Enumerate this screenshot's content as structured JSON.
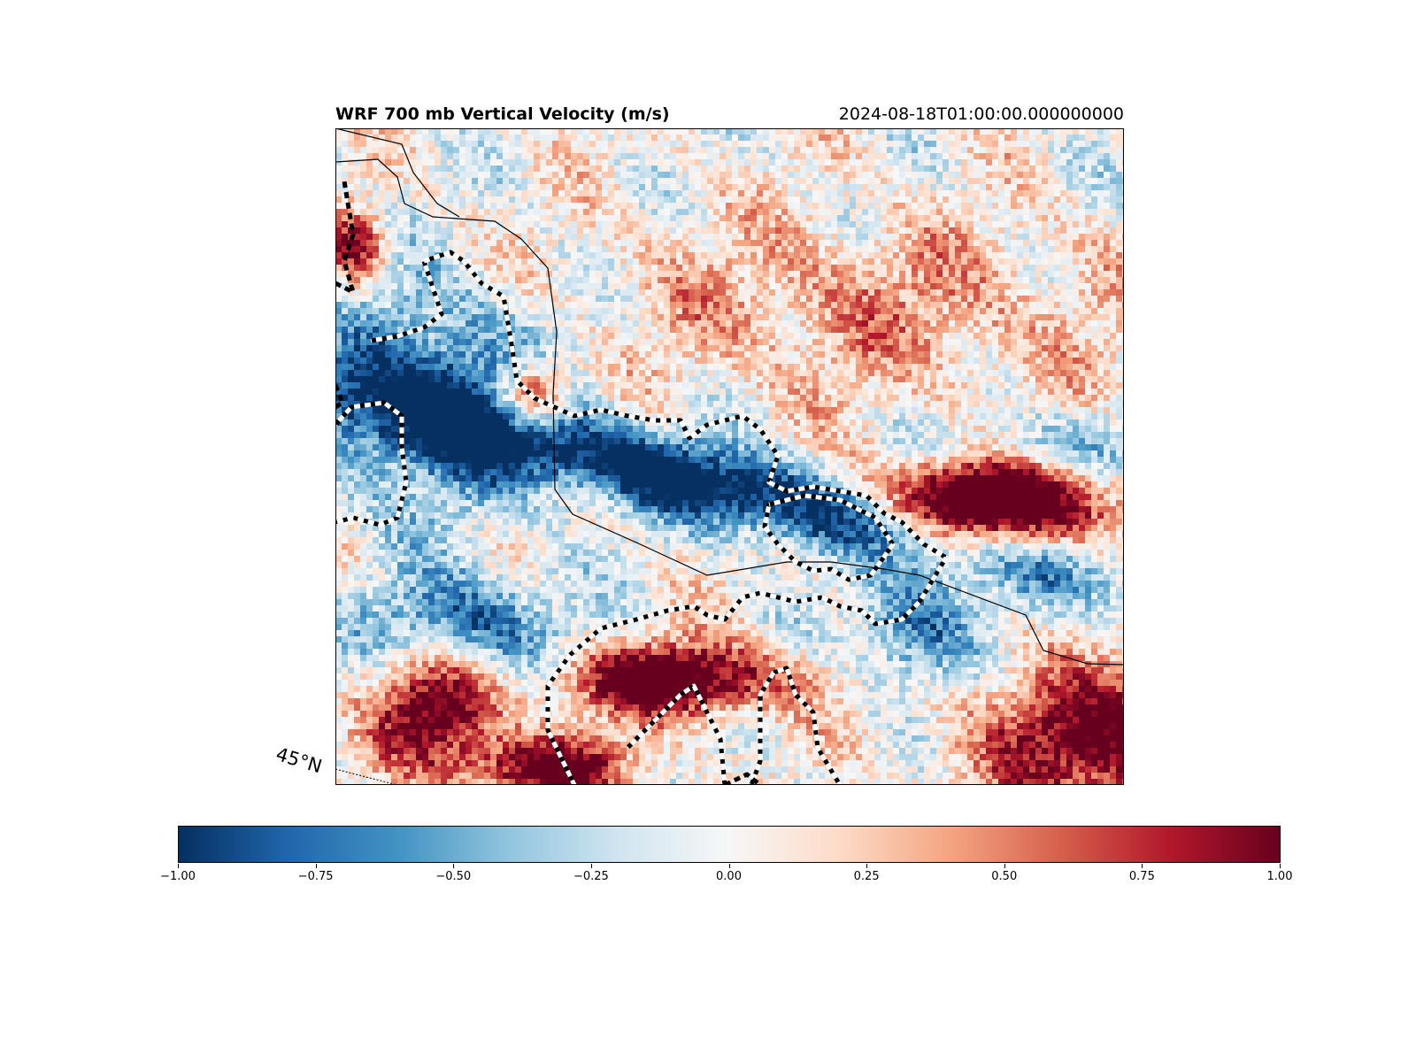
{
  "title": "WRF 700 mb Vertical Velocity (m/s)",
  "valid_time": "2024-08-18T01:00:00.000000000",
  "lat_label": "45°N",
  "colormap": {
    "name": "RdBu_r",
    "vmin": -1.0,
    "vmax": 1.0,
    "stops": [
      "#053061",
      "#2166ac",
      "#4393c3",
      "#92c5de",
      "#d1e5f0",
      "#f7f7f7",
      "#fddbc7",
      "#f4a582",
      "#d6604d",
      "#b2182b",
      "#67001f"
    ]
  },
  "colorbar_ticks": [
    "−1.00",
    "−0.75",
    "−0.50",
    "−0.25",
    "0.00",
    "0.25",
    "0.50",
    "0.75",
    "1.00"
  ],
  "colorbar_tick_values": [
    -1.0,
    -0.75,
    -0.5,
    -0.25,
    0.0,
    0.25,
    0.5,
    0.75,
    1.0
  ]
}
